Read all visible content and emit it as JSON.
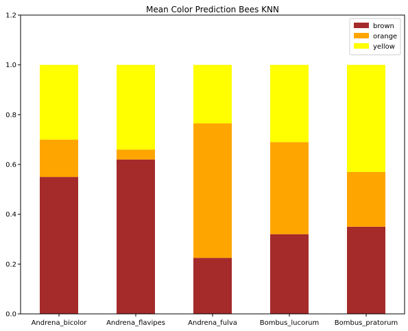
{
  "chart_data": {
    "type": "bar",
    "stacked": true,
    "title": "Mean Color Prediction Bees KNN",
    "xlabel": "",
    "ylabel": "",
    "categories": [
      "Andrena_bicolor",
      "Andrena_flavipes",
      "Andrena_fulva",
      "Bombus_lucorum",
      "Bombus_pratorum"
    ],
    "series": [
      {
        "name": "brown",
        "color": "#a52a2a",
        "values": [
          0.55,
          0.62,
          0.225,
          0.32,
          0.35
        ]
      },
      {
        "name": "orange",
        "color": "#ffa500",
        "values": [
          0.15,
          0.04,
          0.54,
          0.37,
          0.22
        ]
      },
      {
        "name": "yellow",
        "color": "#ffff00",
        "values": [
          0.3,
          0.34,
          0.235,
          0.31,
          0.43
        ]
      }
    ],
    "ylim": [
      0,
      1.2
    ],
    "yticks": [
      "0.0",
      "0.2",
      "0.4",
      "0.6",
      "0.8",
      "1.0",
      "1.2"
    ],
    "grid": false,
    "legend_position": "top-right"
  }
}
